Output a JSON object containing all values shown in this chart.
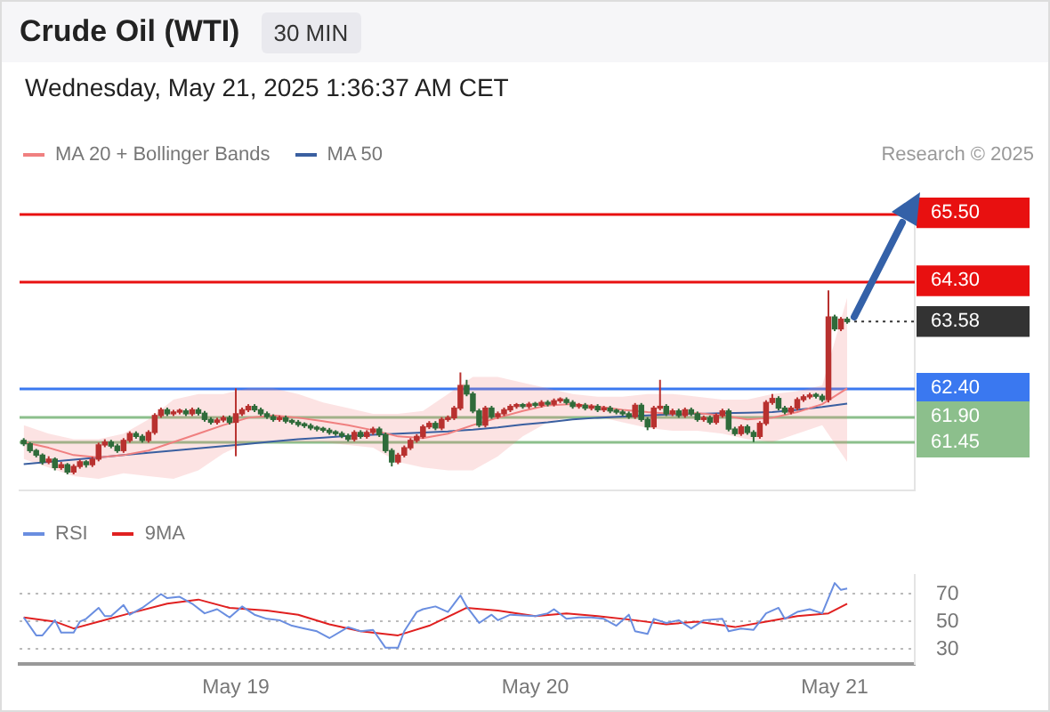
{
  "chart_data": [
    {
      "type": "candlestick",
      "title": "Crude Oil (WTI)",
      "subtitle": "30 MIN",
      "annotations": [
        "Wednesday, May 21, 2025 1:36:37 AM CET",
        "Research © 2025"
      ],
      "x": [
        "2025-05-18T07:00",
        "2025-05-18T07:30",
        "2025-05-18T08:00",
        "2025-05-18T08:30",
        "2025-05-18T09:00",
        "2025-05-18T09:30",
        "2025-05-18T10:00",
        "2025-05-18T10:30",
        "2025-05-18T11:00",
        "2025-05-18T11:30",
        "2025-05-18T12:00",
        "2025-05-18T12:30",
        "2025-05-18T13:00",
        "2025-05-18T13:30",
        "2025-05-18T14:00",
        "2025-05-18T14:30",
        "2025-05-18T15:00",
        "2025-05-18T15:30",
        "2025-05-18T16:00",
        "2025-05-18T16:30",
        "2025-05-18T17:00",
        "2025-05-18T17:30",
        "2025-05-18T18:00",
        "2025-05-18T18:30",
        "2025-05-18T19:00",
        "2025-05-18T19:30",
        "2025-05-18T20:00",
        "2025-05-18T20:30",
        "2025-05-18T21:00",
        "2025-05-18T21:30",
        "2025-05-18T22:00",
        "2025-05-18T22:30",
        "2025-05-18T23:00",
        "2025-05-18T23:30",
        "2025-05-19T00:00",
        "2025-05-19T00:30",
        "2025-05-19T01:00",
        "2025-05-19T01:30",
        "2025-05-19T02:00",
        "2025-05-19T02:30",
        "2025-05-19T03:00",
        "2025-05-19T03:30",
        "2025-05-19T04:00",
        "2025-05-19T04:30",
        "2025-05-19T05:00",
        "2025-05-19T05:30",
        "2025-05-19T06:00",
        "2025-05-19T06:30",
        "2025-05-19T07:00",
        "2025-05-19T07:30",
        "2025-05-19T08:00",
        "2025-05-19T08:30",
        "2025-05-19T09:00",
        "2025-05-19T09:30",
        "2025-05-19T10:00",
        "2025-05-19T10:30",
        "2025-05-19T11:00",
        "2025-05-19T11:30",
        "2025-05-19T12:00",
        "2025-05-19T12:30",
        "2025-05-19T13:00",
        "2025-05-19T13:30",
        "2025-05-19T14:00",
        "2025-05-19T14:30",
        "2025-05-19T15:00",
        "2025-05-19T15:30",
        "2025-05-19T16:00",
        "2025-05-19T16:30",
        "2025-05-19T17:00",
        "2025-05-19T17:30",
        "2025-05-19T18:00",
        "2025-05-19T18:30",
        "2025-05-19T19:00",
        "2025-05-19T19:30",
        "2025-05-19T20:00",
        "2025-05-19T20:30",
        "2025-05-19T21:00",
        "2025-05-19T21:30",
        "2025-05-19T22:00",
        "2025-05-19T22:30",
        "2025-05-19T23:00",
        "2025-05-19T23:30",
        "2025-05-20T00:00",
        "2025-05-20T00:30",
        "2025-05-20T01:00",
        "2025-05-20T01:30",
        "2025-05-20T02:00",
        "2025-05-20T02:30",
        "2025-05-20T03:00",
        "2025-05-20T03:30",
        "2025-05-20T04:00",
        "2025-05-20T04:30",
        "2025-05-20T05:00",
        "2025-05-20T05:30",
        "2025-05-20T06:00",
        "2025-05-20T06:30",
        "2025-05-20T07:00",
        "2025-05-20T07:30",
        "2025-05-20T08:00",
        "2025-05-20T08:30",
        "2025-05-20T09:00",
        "2025-05-20T09:30",
        "2025-05-20T10:00",
        "2025-05-20T10:30",
        "2025-05-20T11:00",
        "2025-05-20T11:30",
        "2025-05-20T12:00",
        "2025-05-20T12:30",
        "2025-05-20T13:00",
        "2025-05-20T13:30",
        "2025-05-20T14:00",
        "2025-05-20T14:30",
        "2025-05-20T15:00",
        "2025-05-20T15:30",
        "2025-05-20T16:00",
        "2025-05-20T16:30",
        "2025-05-20T17:00",
        "2025-05-20T17:30",
        "2025-05-20T18:00",
        "2025-05-20T18:30",
        "2025-05-20T19:00",
        "2025-05-20T19:30",
        "2025-05-20T20:00",
        "2025-05-20T20:30",
        "2025-05-20T21:00",
        "2025-05-20T21:30",
        "2025-05-20T22:00",
        "2025-05-20T22:30",
        "2025-05-20T23:00",
        "2025-05-20T23:30",
        "2025-05-21T00:00",
        "2025-05-21T00:30",
        "2025-05-21T01:00"
      ],
      "ohlc": [
        [
          61.48,
          61.52,
          61.38,
          61.42
        ],
        [
          61.42,
          61.45,
          61.26,
          61.3
        ],
        [
          61.3,
          61.33,
          61.18,
          61.22
        ],
        [
          61.22,
          61.25,
          61.05,
          61.1
        ],
        [
          61.1,
          61.2,
          61.06,
          61.15
        ],
        [
          61.15,
          61.18,
          60.95,
          61.0
        ],
        [
          61.0,
          61.1,
          60.96,
          61.05
        ],
        [
          61.05,
          61.08,
          60.88,
          60.92
        ],
        [
          60.92,
          61.06,
          60.88,
          61.02
        ],
        [
          61.02,
          61.14,
          60.98,
          61.1
        ],
        [
          61.1,
          61.13,
          61.0,
          61.05
        ],
        [
          61.05,
          61.19,
          61.01,
          61.15
        ],
        [
          61.15,
          61.44,
          61.11,
          61.4
        ],
        [
          61.4,
          61.5,
          61.36,
          61.45
        ],
        [
          61.45,
          61.49,
          61.34,
          61.38
        ],
        [
          61.38,
          61.42,
          61.26,
          61.3
        ],
        [
          61.3,
          61.52,
          61.26,
          61.48
        ],
        [
          61.48,
          61.64,
          61.44,
          61.6
        ],
        [
          61.6,
          61.64,
          61.51,
          61.55
        ],
        [
          61.55,
          61.59,
          61.44,
          61.48
        ],
        [
          61.48,
          61.66,
          61.44,
          61.62
        ],
        [
          61.62,
          61.96,
          61.58,
          61.92
        ],
        [
          61.92,
          62.06,
          61.88,
          62.02
        ],
        [
          62.02,
          62.06,
          61.91,
          61.95
        ],
        [
          61.95,
          62.02,
          61.91,
          61.98
        ],
        [
          61.98,
          62.04,
          61.94,
          62.0
        ],
        [
          62.0,
          62.04,
          61.91,
          61.95
        ],
        [
          61.95,
          62.06,
          61.91,
          62.02
        ],
        [
          62.02,
          62.06,
          61.92,
          61.96
        ],
        [
          61.96,
          62.0,
          61.81,
          61.85
        ],
        [
          61.85,
          61.89,
          61.76,
          61.8
        ],
        [
          61.8,
          61.88,
          61.76,
          61.84
        ],
        [
          61.84,
          61.92,
          61.8,
          61.88
        ],
        [
          61.88,
          61.92,
          61.76,
          61.8
        ],
        [
          61.8,
          62.4,
          61.2,
          61.95
        ],
        [
          61.95,
          62.06,
          61.91,
          62.02
        ],
        [
          62.02,
          62.12,
          61.98,
          62.08
        ],
        [
          62.08,
          62.12,
          61.98,
          62.02
        ],
        [
          62.02,
          62.06,
          61.91,
          61.95
        ],
        [
          61.95,
          61.99,
          61.86,
          61.9
        ],
        [
          61.9,
          61.94,
          61.81,
          61.85
        ],
        [
          61.85,
          61.92,
          61.81,
          61.88
        ],
        [
          61.88,
          61.92,
          61.78,
          61.82
        ],
        [
          61.82,
          61.86,
          61.76,
          61.8
        ],
        [
          61.8,
          61.84,
          61.72,
          61.76
        ],
        [
          61.76,
          61.8,
          61.7,
          61.74
        ],
        [
          61.74,
          61.78,
          61.66,
          61.7
        ],
        [
          61.7,
          61.74,
          61.64,
          61.68
        ],
        [
          61.68,
          61.72,
          61.62,
          61.66
        ],
        [
          61.66,
          61.7,
          61.58,
          61.62
        ],
        [
          61.62,
          61.66,
          61.56,
          61.6
        ],
        [
          61.6,
          61.64,
          61.52,
          61.56
        ],
        [
          61.56,
          61.6,
          61.46,
          61.5
        ],
        [
          61.5,
          61.66,
          61.46,
          61.62
        ],
        [
          61.62,
          61.66,
          61.51,
          61.55
        ],
        [
          61.55,
          61.66,
          61.51,
          61.62
        ],
        [
          61.62,
          61.72,
          61.58,
          61.68
        ],
        [
          61.68,
          61.72,
          61.54,
          61.58
        ],
        [
          61.58,
          61.62,
          61.26,
          61.3
        ],
        [
          61.3,
          61.34,
          61.02,
          61.1
        ],
        [
          61.1,
          61.26,
          61.06,
          61.22
        ],
        [
          61.22,
          61.39,
          61.18,
          61.35
        ],
        [
          61.35,
          61.52,
          61.31,
          61.48
        ],
        [
          61.48,
          61.59,
          61.44,
          61.55
        ],
        [
          61.55,
          61.76,
          61.51,
          61.72
        ],
        [
          61.72,
          61.82,
          61.68,
          61.78
        ],
        [
          61.78,
          61.82,
          61.66,
          61.7
        ],
        [
          61.7,
          61.89,
          61.66,
          61.85
        ],
        [
          61.85,
          61.92,
          61.81,
          61.88
        ],
        [
          61.88,
          62.09,
          61.84,
          62.05
        ],
        [
          62.05,
          62.68,
          62.01,
          62.45
        ],
        [
          62.45,
          62.55,
          62.26,
          62.3
        ],
        [
          62.3,
          62.34,
          61.96,
          62.0
        ],
        [
          62.0,
          62.04,
          61.71,
          61.75
        ],
        [
          61.75,
          62.09,
          61.71,
          62.05
        ],
        [
          62.05,
          62.09,
          61.86,
          61.9
        ],
        [
          61.9,
          61.99,
          61.86,
          61.95
        ],
        [
          61.95,
          62.06,
          61.91,
          62.02
        ],
        [
          62.02,
          62.12,
          61.98,
          62.08
        ],
        [
          62.08,
          62.14,
          62.04,
          62.1
        ],
        [
          62.1,
          62.14,
          62.04,
          62.08
        ],
        [
          62.08,
          62.16,
          62.04,
          62.12
        ],
        [
          62.12,
          62.16,
          62.06,
          62.1
        ],
        [
          62.1,
          62.19,
          62.06,
          62.15
        ],
        [
          62.15,
          62.19,
          62.08,
          62.12
        ],
        [
          62.12,
          62.22,
          62.08,
          62.18
        ],
        [
          62.18,
          62.24,
          62.14,
          62.2
        ],
        [
          62.2,
          62.24,
          62.11,
          62.15
        ],
        [
          62.15,
          62.19,
          62.04,
          62.08
        ],
        [
          62.08,
          62.14,
          62.04,
          62.1
        ],
        [
          62.1,
          62.14,
          62.01,
          62.05
        ],
        [
          62.05,
          62.12,
          62.01,
          62.08
        ],
        [
          62.08,
          62.12,
          61.98,
          62.02
        ],
        [
          62.02,
          62.09,
          61.98,
          62.05
        ],
        [
          62.05,
          62.09,
          61.96,
          62.0
        ],
        [
          62.0,
          62.04,
          61.94,
          61.98
        ],
        [
          61.98,
          62.02,
          61.91,
          61.95
        ],
        [
          61.95,
          61.99,
          61.86,
          61.9
        ],
        [
          61.9,
          62.14,
          61.86,
          62.1
        ],
        [
          62.1,
          62.14,
          61.81,
          61.85
        ],
        [
          61.85,
          61.89,
          61.66,
          61.72
        ],
        [
          61.72,
          62.09,
          61.68,
          62.05
        ],
        [
          62.05,
          62.55,
          62.01,
          62.08
        ],
        [
          62.08,
          62.12,
          61.91,
          61.95
        ],
        [
          61.95,
          62.04,
          61.91,
          62.0
        ],
        [
          62.0,
          62.04,
          61.88,
          61.92
        ],
        [
          61.92,
          62.06,
          61.88,
          62.02
        ],
        [
          62.02,
          62.06,
          61.91,
          61.95
        ],
        [
          61.95,
          61.99,
          61.81,
          61.85
        ],
        [
          61.85,
          61.92,
          61.81,
          61.88
        ],
        [
          61.88,
          61.92,
          61.76,
          61.8
        ],
        [
          61.8,
          61.96,
          61.76,
          61.92
        ],
        [
          61.92,
          62.04,
          61.88,
          62.0
        ],
        [
          62.0,
          62.04,
          61.64,
          61.68
        ],
        [
          61.68,
          61.72,
          61.56,
          61.6
        ],
        [
          61.6,
          61.76,
          61.56,
          61.72
        ],
        [
          61.72,
          61.76,
          61.58,
          61.62
        ],
        [
          61.62,
          61.66,
          61.45,
          61.55
        ],
        [
          61.55,
          61.82,
          61.51,
          61.78
        ],
        [
          61.78,
          62.19,
          61.74,
          62.15
        ],
        [
          62.15,
          62.3,
          62.11,
          62.22
        ],
        [
          62.22,
          62.26,
          62.01,
          62.05
        ],
        [
          62.05,
          62.09,
          61.94,
          61.98
        ],
        [
          61.98,
          62.09,
          61.94,
          62.05
        ],
        [
          62.05,
          62.24,
          62.01,
          62.2
        ],
        [
          62.2,
          62.29,
          62.16,
          62.25
        ],
        [
          62.25,
          62.32,
          62.21,
          62.28
        ],
        [
          62.28,
          62.32,
          62.22,
          62.26
        ],
        [
          62.26,
          62.3,
          62.16,
          62.2
        ],
        [
          62.2,
          64.13,
          62.15,
          63.66
        ],
        [
          63.66,
          63.7,
          63.41,
          63.45
        ],
        [
          63.45,
          63.66,
          63.41,
          63.62
        ],
        [
          63.62,
          63.66,
          63.54,
          63.58
        ]
      ],
      "series": [
        {
          "type": "line",
          "name": "MA 20 + Bollinger Bands",
          "color": "#f08080",
          "x": [
            "2025-05-18T07:00",
            "2025-05-18T09:00",
            "2025-05-18T11:00",
            "2025-05-18T13:00",
            "2025-05-18T15:00",
            "2025-05-18T17:00",
            "2025-05-18T19:00",
            "2025-05-18T21:00",
            "2025-05-18T23:00",
            "2025-05-19T01:00",
            "2025-05-19T03:00",
            "2025-05-19T05:00",
            "2025-05-19T07:00",
            "2025-05-19T09:00",
            "2025-05-19T11:00",
            "2025-05-19T13:00",
            "2025-05-19T15:00",
            "2025-05-19T17:00",
            "2025-05-19T19:00",
            "2025-05-19T21:00",
            "2025-05-19T23:00",
            "2025-05-20T01:00",
            "2025-05-20T03:00",
            "2025-05-20T05:00",
            "2025-05-20T07:00",
            "2025-05-20T09:00",
            "2025-05-20T11:00",
            "2025-05-20T13:00",
            "2025-05-20T15:00",
            "2025-05-20T17:00",
            "2025-05-20T19:00",
            "2025-05-20T21:00",
            "2025-05-20T23:00",
            "2025-05-21T01:00"
          ],
          "values": [
            61.45,
            61.35,
            61.22,
            61.18,
            61.22,
            61.3,
            61.45,
            61.6,
            61.75,
            61.88,
            61.92,
            61.88,
            61.82,
            61.75,
            61.66,
            61.55,
            61.52,
            61.6,
            61.75,
            61.88,
            62.0,
            62.1,
            62.12,
            62.08,
            62.02,
            61.98,
            61.95,
            61.96,
            61.92,
            61.85,
            61.88,
            61.98,
            62.12,
            62.4
          ],
          "lower": [
            61.15,
            61.0,
            60.85,
            60.8,
            60.9,
            60.85,
            60.8,
            60.95,
            61.25,
            61.45,
            61.45,
            61.45,
            61.45,
            61.4,
            61.35,
            61.1,
            61.0,
            60.95,
            60.95,
            61.2,
            61.55,
            61.8,
            61.9,
            61.9,
            61.8,
            61.7,
            61.65,
            61.65,
            61.6,
            61.5,
            61.45,
            61.6,
            61.75,
            61.1
          ],
          "upper": [
            61.75,
            61.6,
            61.5,
            61.5,
            61.6,
            61.85,
            62.2,
            62.3,
            62.3,
            62.4,
            62.4,
            62.3,
            62.15,
            62.05,
            61.95,
            61.95,
            62.0,
            62.3,
            62.6,
            62.6,
            62.5,
            62.4,
            62.3,
            62.25,
            62.25,
            62.3,
            62.3,
            62.25,
            62.2,
            62.2,
            62.3,
            62.35,
            62.45,
            64.0
          ]
        },
        {
          "type": "line",
          "name": "MA 50",
          "color": "#3a5fa0",
          "x": [
            "2025-05-18T07:00",
            "2025-05-18T09:00",
            "2025-05-18T11:00",
            "2025-05-18T13:00",
            "2025-05-18T15:00",
            "2025-05-18T17:00",
            "2025-05-18T19:00",
            "2025-05-18T21:00",
            "2025-05-18T23:00",
            "2025-05-19T01:00",
            "2025-05-19T03:00",
            "2025-05-19T05:00",
            "2025-05-19T07:00",
            "2025-05-19T09:00",
            "2025-05-19T11:00",
            "2025-05-19T13:00",
            "2025-05-19T15:00",
            "2025-05-19T17:00",
            "2025-05-19T19:00",
            "2025-05-19T21:00",
            "2025-05-19T23:00",
            "2025-05-20T01:00",
            "2025-05-20T03:00",
            "2025-05-20T05:00",
            "2025-05-20T07:00",
            "2025-05-20T09:00",
            "2025-05-20T11:00",
            "2025-05-20T13:00",
            "2025-05-20T15:00",
            "2025-05-20T17:00",
            "2025-05-20T19:00",
            "2025-05-20T21:00",
            "2025-05-20T23:00",
            "2025-05-21T01:00"
          ],
          "values": [
            61.06,
            61.1,
            61.14,
            61.18,
            61.22,
            61.26,
            61.3,
            61.34,
            61.38,
            61.42,
            61.46,
            61.5,
            61.53,
            61.56,
            61.58,
            61.6,
            61.62,
            61.64,
            61.67,
            61.71,
            61.76,
            61.8,
            61.85,
            61.88,
            61.9,
            61.92,
            61.94,
            61.95,
            61.96,
            61.97,
            61.98,
            62.02,
            62.07,
            62.13
          ]
        },
        {
          "type": "line",
          "color": "#333333",
          "line_style": "dotted",
          "x": [
            "2025-05-21T01:00",
            "2025-05-21T06:25"
          ],
          "values": [
            63.58,
            63.58
          ]
        }
      ],
      "legend": "top left",
      "tick_labels": "y",
      "xlim": [
        "2025-05-18T06:40",
        "2025-05-21T06:25"
      ],
      "xticks": [
        {
          "value": "2025-05-19T00:00",
          "label": null
        },
        {
          "value": "2025-05-20T00:00",
          "label": null
        },
        {
          "value": "2025-05-21T00:00",
          "label": null
        }
      ],
      "ylim": [
        60.6,
        65.75
      ],
      "yticks": [
        {
          "value": 65.5,
          "label": "65.50"
        },
        {
          "value": 64.3,
          "label": "64.30"
        },
        {
          "value": 63.58,
          "label": "63.58"
        },
        {
          "value": 62.4,
          "label": "62.40"
        },
        {
          "value": 61.9,
          "label": "61.90"
        },
        {
          "value": 61.45,
          "label": "61.45"
        }
      ],
      "ref_lines": [
        {
          "axis": "y",
          "value": 65.5,
          "color": "#e81010",
          "line_style": "solid"
        },
        {
          "axis": "y",
          "value": 64.3,
          "color": "#e81010",
          "line_style": "solid"
        },
        {
          "axis": "y",
          "value": 62.4,
          "color": "#3a78f0",
          "line_style": "solid"
        },
        {
          "axis": "y",
          "value": 61.9,
          "color": "#8cbf8c",
          "line_style": "solid"
        },
        {
          "axis": "y",
          "value": 61.45,
          "color": "#8cbf8c",
          "line_style": "solid"
        }
      ]
    },
    {
      "type": "line",
      "legend": "top left",
      "grid": "y",
      "xlim": [
        "2025-05-18T06:40",
        "2025-05-21T06:25"
      ],
      "xticks": [
        {
          "value": "2025-05-19T00:00",
          "label": "May 19"
        },
        {
          "value": "2025-05-20T00:00",
          "label": "May 20"
        },
        {
          "value": "2025-05-21T00:00",
          "label": "May 21"
        }
      ],
      "ylim": [
        19,
        84
      ],
      "yticks": [
        30,
        50,
        70
      ],
      "series": [
        {
          "name": "RSI",
          "color": "#6a8ee0",
          "x": [
            "2025-05-18T07:00",
            "2025-05-18T08:00",
            "2025-05-18T08:30",
            "2025-05-18T09:30",
            "2025-05-18T10:00",
            "2025-05-18T11:00",
            "2025-05-18T11:30",
            "2025-05-18T12:00",
            "2025-05-18T13:00",
            "2025-05-18T13:30",
            "2025-05-18T14:00",
            "2025-05-18T15:00",
            "2025-05-18T15:30",
            "2025-05-18T16:30",
            "2025-05-18T18:00",
            "2025-05-18T18:30",
            "2025-05-18T19:30",
            "2025-05-18T20:30",
            "2025-05-18T21:30",
            "2025-05-18T22:30",
            "2025-05-18T23:30",
            "2025-05-19T00:30",
            "2025-05-19T01:30",
            "2025-05-19T02:30",
            "2025-05-19T03:30",
            "2025-05-19T04:30",
            "2025-05-19T05:30",
            "2025-05-19T06:30",
            "2025-05-19T07:30",
            "2025-05-19T09:00",
            "2025-05-19T10:00",
            "2025-05-19T11:00",
            "2025-05-19T12:00",
            "2025-05-19T13:00",
            "2025-05-19T13:30",
            "2025-05-19T14:30",
            "2025-05-19T15:00",
            "2025-05-19T16:00",
            "2025-05-19T17:00",
            "2025-05-19T18:00",
            "2025-05-19T18:30",
            "2025-05-19T19:30",
            "2025-05-19T20:30",
            "2025-05-19T21:00",
            "2025-05-19T22:00",
            "2025-05-20T00:00",
            "2025-05-20T01:00",
            "2025-05-20T01:30",
            "2025-05-20T02:30",
            "2025-05-20T03:30",
            "2025-05-20T04:30",
            "2025-05-20T05:30",
            "2025-05-20T06:30",
            "2025-05-20T07:30",
            "2025-05-20T08:00",
            "2025-05-20T09:00",
            "2025-05-20T09:30",
            "2025-05-20T10:30",
            "2025-05-20T11:30",
            "2025-05-20T12:30",
            "2025-05-20T13:30",
            "2025-05-20T15:00",
            "2025-05-20T15:30",
            "2025-05-20T16:30",
            "2025-05-20T17:30",
            "2025-05-20T18:30",
            "2025-05-20T19:30",
            "2025-05-20T20:00",
            "2025-05-20T21:00",
            "2025-05-20T22:00",
            "2025-05-20T23:00",
            "2025-05-21T00:00",
            "2025-05-21T00:30",
            "2025-05-21T01:00"
          ],
          "values": [
            53,
            40,
            40,
            51,
            42,
            42,
            50,
            52,
            60,
            54,
            54,
            62,
            55,
            60,
            70,
            67,
            68,
            63,
            56,
            59,
            53,
            61,
            55,
            52,
            51,
            47,
            45,
            43,
            38,
            46,
            43,
            44,
            31,
            31,
            43,
            57,
            59,
            61,
            57,
            69,
            61,
            49,
            55,
            51,
            55,
            54,
            56,
            59,
            52,
            53,
            53,
            52,
            47,
            55,
            43,
            41,
            52,
            49,
            51,
            45,
            51,
            52,
            43,
            45,
            44,
            56,
            60,
            52,
            57,
            59,
            56,
            78,
            73,
            74
          ]
        },
        {
          "name": "9MA",
          "color": "#e02020",
          "x": [
            "2025-05-18T07:00",
            "2025-05-18T09:30",
            "2025-05-18T11:00",
            "2025-05-18T13:00",
            "2025-05-18T15:30",
            "2025-05-18T18:30",
            "2025-05-18T21:00",
            "2025-05-18T23:30",
            "2025-05-19T02:30",
            "2025-05-19T05:00",
            "2025-05-19T07:30",
            "2025-05-19T10:00",
            "2025-05-19T13:00",
            "2025-05-19T15:30",
            "2025-05-19T18:30",
            "2025-05-19T21:00",
            "2025-05-20T00:00",
            "2025-05-20T02:30",
            "2025-05-20T05:00",
            "2025-05-20T08:00",
            "2025-05-20T10:30",
            "2025-05-20T13:00",
            "2025-05-20T16:00",
            "2025-05-20T18:30",
            "2025-05-20T21:00",
            "2025-05-20T23:30",
            "2025-05-21T01:00"
          ],
          "values": [
            53,
            50,
            45,
            50,
            56,
            63,
            66,
            60,
            58,
            55,
            48,
            43,
            40,
            47,
            60,
            58,
            54,
            56,
            54,
            51,
            48,
            50,
            46,
            50,
            54,
            56,
            63
          ]
        }
      ]
    }
  ]
}
